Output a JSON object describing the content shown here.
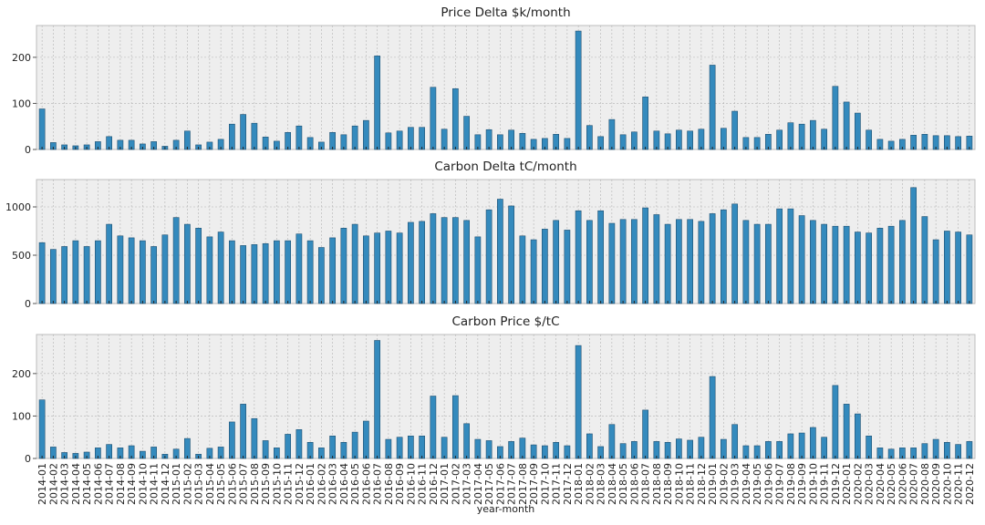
{
  "chart_data": [
    {
      "type": "bar",
      "title": "Price Delta $k/month",
      "color": "#348ABD",
      "grid": true,
      "ylim": [
        0,
        269
      ],
      "yticks": [
        0,
        100,
        200
      ],
      "values": [
        88,
        15,
        10,
        8,
        10,
        17,
        28,
        20,
        20,
        12,
        17,
        7,
        20,
        40,
        10,
        16,
        22,
        55,
        76,
        57,
        27,
        18,
        37,
        51,
        26,
        16,
        37,
        32,
        51,
        63,
        203,
        36,
        40,
        48,
        48,
        135,
        44,
        132,
        72,
        32,
        43,
        32,
        42,
        35,
        22,
        24,
        33,
        24,
        257,
        52,
        28,
        65,
        32,
        38,
        114,
        40,
        34,
        42,
        40,
        44,
        183,
        46,
        83,
        26,
        26,
        33,
        42,
        58,
        55,
        63,
        44,
        137,
        103,
        79,
        42,
        22,
        18,
        22,
        31,
        33,
        30,
        30,
        28,
        29
      ]
    },
    {
      "type": "bar",
      "title": "Carbon Delta tC/month",
      "color": "#348ABD",
      "grid": true,
      "ylim": [
        0,
        1283
      ],
      "yticks": [
        0,
        500,
        1000
      ],
      "values": [
        630,
        560,
        590,
        650,
        590,
        650,
        820,
        700,
        680,
        650,
        590,
        710,
        890,
        820,
        780,
        690,
        740,
        650,
        600,
        610,
        620,
        650,
        650,
        720,
        650,
        580,
        680,
        780,
        820,
        700,
        730,
        750,
        730,
        840,
        850,
        930,
        890,
        890,
        860,
        690,
        970,
        1080,
        1010,
        700,
        660,
        770,
        860,
        760,
        960,
        860,
        960,
        830,
        870,
        870,
        990,
        920,
        820,
        870,
        870,
        850,
        930,
        970,
        1030,
        860,
        820,
        820,
        980,
        980,
        910,
        860,
        820,
        800,
        800,
        740,
        730,
        780,
        800,
        860,
        1200,
        900,
        660,
        750,
        740,
        710
      ]
    },
    {
      "type": "bar",
      "title": "Carbon Price $/tC",
      "color": "#348ABD",
      "grid": true,
      "ylim": [
        0,
        292
      ],
      "yticks": [
        0,
        100,
        200
      ],
      "xlabel": "year-month",
      "categories": [
        "2014-01",
        "2014-02",
        "2014-03",
        "2014-04",
        "2014-05",
        "2014-06",
        "2014-07",
        "2014-08",
        "2014-09",
        "2014-10",
        "2014-11",
        "2014-12",
        "2015-01",
        "2015-02",
        "2015-03",
        "2015-04",
        "2015-05",
        "2015-06",
        "2015-07",
        "2015-08",
        "2015-09",
        "2015-10",
        "2015-11",
        "2015-12",
        "2016-01",
        "2016-02",
        "2016-03",
        "2016-04",
        "2016-05",
        "2016-06",
        "2016-07",
        "2016-08",
        "2016-09",
        "2016-10",
        "2016-11",
        "2016-12",
        "2017-01",
        "2017-02",
        "2017-03",
        "2017-04",
        "2017-05",
        "2017-06",
        "2017-07",
        "2017-08",
        "2017-09",
        "2017-10",
        "2017-11",
        "2017-12",
        "2018-01",
        "2018-02",
        "2018-03",
        "2018-04",
        "2018-05",
        "2018-06",
        "2018-07",
        "2018-08",
        "2018-09",
        "2018-10",
        "2018-11",
        "2018-12",
        "2019-01",
        "2019-02",
        "2019-03",
        "2019-04",
        "2019-05",
        "2019-06",
        "2019-07",
        "2019-08",
        "2019-09",
        "2019-10",
        "2019-11",
        "2019-12",
        "2020-01",
        "2020-02",
        "2020-03",
        "2020-04",
        "2020-05",
        "2020-06",
        "2020-07",
        "2020-08",
        "2020-09",
        "2020-10",
        "2020-11",
        "2020-12"
      ],
      "values": [
        138,
        27,
        14,
        12,
        15,
        25,
        33,
        25,
        30,
        17,
        27,
        10,
        22,
        47,
        10,
        24,
        27,
        86,
        128,
        94,
        42,
        25,
        57,
        68,
        38,
        25,
        53,
        38,
        62,
        88,
        278,
        45,
        50,
        53,
        53,
        147,
        50,
        148,
        82,
        45,
        42,
        28,
        40,
        48,
        32,
        30,
        38,
        30,
        266,
        58,
        28,
        80,
        35,
        40,
        114,
        40,
        38,
        46,
        43,
        50,
        193,
        45,
        80,
        30,
        30,
        40,
        40,
        58,
        60,
        73,
        50,
        172,
        128,
        105,
        53,
        25,
        22,
        25,
        25,
        35,
        45,
        38,
        33,
        40
      ]
    }
  ]
}
